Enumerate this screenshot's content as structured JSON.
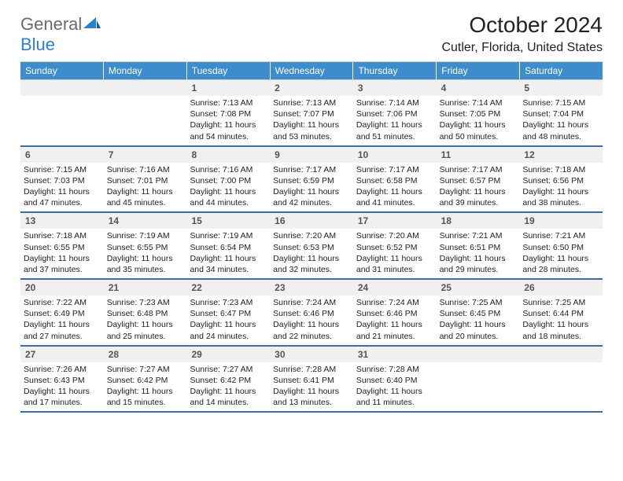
{
  "brand": {
    "part1": "General",
    "part2": "Blue"
  },
  "month_title": "October 2024",
  "location": "Cutler, Florida, United States",
  "header_color": "#3d8ccc",
  "row_divider_color": "#3d6ea3",
  "daynum_bg": "#f0f0f0",
  "background": "#ffffff",
  "day_names": [
    "Sunday",
    "Monday",
    "Tuesday",
    "Wednesday",
    "Thursday",
    "Friday",
    "Saturday"
  ],
  "weeks": [
    [
      null,
      null,
      {
        "n": "1",
        "sr": "Sunrise: 7:13 AM",
        "ss": "Sunset: 7:08 PM",
        "dl": "Daylight: 11 hours and 54 minutes."
      },
      {
        "n": "2",
        "sr": "Sunrise: 7:13 AM",
        "ss": "Sunset: 7:07 PM",
        "dl": "Daylight: 11 hours and 53 minutes."
      },
      {
        "n": "3",
        "sr": "Sunrise: 7:14 AM",
        "ss": "Sunset: 7:06 PM",
        "dl": "Daylight: 11 hours and 51 minutes."
      },
      {
        "n": "4",
        "sr": "Sunrise: 7:14 AM",
        "ss": "Sunset: 7:05 PM",
        "dl": "Daylight: 11 hours and 50 minutes."
      },
      {
        "n": "5",
        "sr": "Sunrise: 7:15 AM",
        "ss": "Sunset: 7:04 PM",
        "dl": "Daylight: 11 hours and 48 minutes."
      }
    ],
    [
      {
        "n": "6",
        "sr": "Sunrise: 7:15 AM",
        "ss": "Sunset: 7:03 PM",
        "dl": "Daylight: 11 hours and 47 minutes."
      },
      {
        "n": "7",
        "sr": "Sunrise: 7:16 AM",
        "ss": "Sunset: 7:01 PM",
        "dl": "Daylight: 11 hours and 45 minutes."
      },
      {
        "n": "8",
        "sr": "Sunrise: 7:16 AM",
        "ss": "Sunset: 7:00 PM",
        "dl": "Daylight: 11 hours and 44 minutes."
      },
      {
        "n": "9",
        "sr": "Sunrise: 7:17 AM",
        "ss": "Sunset: 6:59 PM",
        "dl": "Daylight: 11 hours and 42 minutes."
      },
      {
        "n": "10",
        "sr": "Sunrise: 7:17 AM",
        "ss": "Sunset: 6:58 PM",
        "dl": "Daylight: 11 hours and 41 minutes."
      },
      {
        "n": "11",
        "sr": "Sunrise: 7:17 AM",
        "ss": "Sunset: 6:57 PM",
        "dl": "Daylight: 11 hours and 39 minutes."
      },
      {
        "n": "12",
        "sr": "Sunrise: 7:18 AM",
        "ss": "Sunset: 6:56 PM",
        "dl": "Daylight: 11 hours and 38 minutes."
      }
    ],
    [
      {
        "n": "13",
        "sr": "Sunrise: 7:18 AM",
        "ss": "Sunset: 6:55 PM",
        "dl": "Daylight: 11 hours and 37 minutes."
      },
      {
        "n": "14",
        "sr": "Sunrise: 7:19 AM",
        "ss": "Sunset: 6:55 PM",
        "dl": "Daylight: 11 hours and 35 minutes."
      },
      {
        "n": "15",
        "sr": "Sunrise: 7:19 AM",
        "ss": "Sunset: 6:54 PM",
        "dl": "Daylight: 11 hours and 34 minutes."
      },
      {
        "n": "16",
        "sr": "Sunrise: 7:20 AM",
        "ss": "Sunset: 6:53 PM",
        "dl": "Daylight: 11 hours and 32 minutes."
      },
      {
        "n": "17",
        "sr": "Sunrise: 7:20 AM",
        "ss": "Sunset: 6:52 PM",
        "dl": "Daylight: 11 hours and 31 minutes."
      },
      {
        "n": "18",
        "sr": "Sunrise: 7:21 AM",
        "ss": "Sunset: 6:51 PM",
        "dl": "Daylight: 11 hours and 29 minutes."
      },
      {
        "n": "19",
        "sr": "Sunrise: 7:21 AM",
        "ss": "Sunset: 6:50 PM",
        "dl": "Daylight: 11 hours and 28 minutes."
      }
    ],
    [
      {
        "n": "20",
        "sr": "Sunrise: 7:22 AM",
        "ss": "Sunset: 6:49 PM",
        "dl": "Daylight: 11 hours and 27 minutes."
      },
      {
        "n": "21",
        "sr": "Sunrise: 7:23 AM",
        "ss": "Sunset: 6:48 PM",
        "dl": "Daylight: 11 hours and 25 minutes."
      },
      {
        "n": "22",
        "sr": "Sunrise: 7:23 AM",
        "ss": "Sunset: 6:47 PM",
        "dl": "Daylight: 11 hours and 24 minutes."
      },
      {
        "n": "23",
        "sr": "Sunrise: 7:24 AM",
        "ss": "Sunset: 6:46 PM",
        "dl": "Daylight: 11 hours and 22 minutes."
      },
      {
        "n": "24",
        "sr": "Sunrise: 7:24 AM",
        "ss": "Sunset: 6:46 PM",
        "dl": "Daylight: 11 hours and 21 minutes."
      },
      {
        "n": "25",
        "sr": "Sunrise: 7:25 AM",
        "ss": "Sunset: 6:45 PM",
        "dl": "Daylight: 11 hours and 20 minutes."
      },
      {
        "n": "26",
        "sr": "Sunrise: 7:25 AM",
        "ss": "Sunset: 6:44 PM",
        "dl": "Daylight: 11 hours and 18 minutes."
      }
    ],
    [
      {
        "n": "27",
        "sr": "Sunrise: 7:26 AM",
        "ss": "Sunset: 6:43 PM",
        "dl": "Daylight: 11 hours and 17 minutes."
      },
      {
        "n": "28",
        "sr": "Sunrise: 7:27 AM",
        "ss": "Sunset: 6:42 PM",
        "dl": "Daylight: 11 hours and 15 minutes."
      },
      {
        "n": "29",
        "sr": "Sunrise: 7:27 AM",
        "ss": "Sunset: 6:42 PM",
        "dl": "Daylight: 11 hours and 14 minutes."
      },
      {
        "n": "30",
        "sr": "Sunrise: 7:28 AM",
        "ss": "Sunset: 6:41 PM",
        "dl": "Daylight: 11 hours and 13 minutes."
      },
      {
        "n": "31",
        "sr": "Sunrise: 7:28 AM",
        "ss": "Sunset: 6:40 PM",
        "dl": "Daylight: 11 hours and 11 minutes."
      },
      null,
      null
    ]
  ]
}
